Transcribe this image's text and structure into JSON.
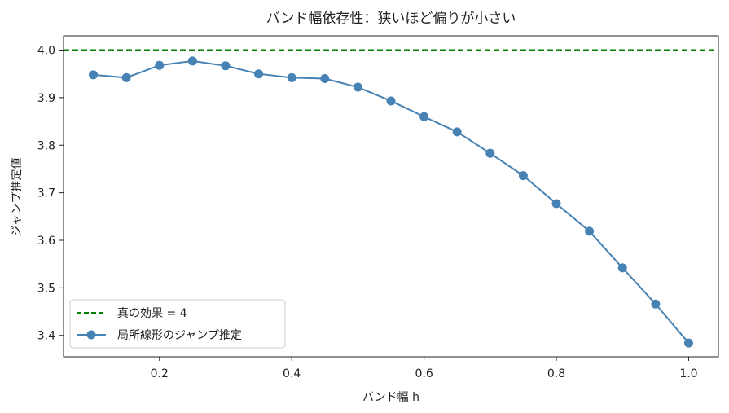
{
  "chart_data": {
    "type": "line",
    "title": "バンド幅依存性：狭いほど偏りが小さい",
    "xlabel": "バンド幅 h",
    "ylabel": "ジャンプ推定値",
    "xlim": [
      0.055,
      1.045
    ],
    "ylim": [
      3.355,
      4.03
    ],
    "xticks": [
      0.2,
      0.4,
      0.6,
      0.8,
      1.0
    ],
    "xtick_labels": [
      "0.2",
      "0.4",
      "0.6",
      "0.8",
      "1.0"
    ],
    "yticks": [
      3.4,
      3.5,
      3.6,
      3.7,
      3.8,
      3.9,
      4.0
    ],
    "ytick_labels": [
      "3.4",
      "3.5",
      "3.6",
      "3.7",
      "3.8",
      "3.9",
      "4.0"
    ],
    "grid": false,
    "legend_position": "lower-left",
    "reference_line": {
      "name": "真の効果 = 4",
      "y": 4.0,
      "color": "#008000",
      "style": "dashed"
    },
    "series": [
      {
        "name": "局所線形のジャンプ推定",
        "color": "#4682b4",
        "marker": "circle",
        "x": [
          0.1,
          0.15,
          0.2,
          0.25,
          0.3,
          0.35,
          0.4,
          0.45,
          0.5,
          0.55,
          0.6,
          0.65,
          0.7,
          0.75,
          0.8,
          0.85,
          0.9,
          0.95,
          1.0
        ],
        "y": [
          3.948,
          3.942,
          3.968,
          3.977,
          3.967,
          3.95,
          3.942,
          3.94,
          3.922,
          3.893,
          3.86,
          3.828,
          3.783,
          3.736,
          3.677,
          3.619,
          3.542,
          3.466,
          3.384
        ]
      }
    ]
  }
}
